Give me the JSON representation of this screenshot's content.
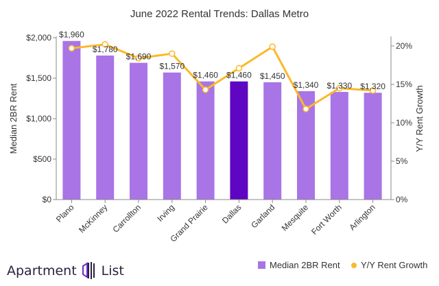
{
  "chart_data": {
    "type": "bar+line",
    "title": "June 2022 Rental Trends: Dallas Metro",
    "categories": [
      "Plano",
      "McKinney",
      "Carrollton",
      "Irving",
      "Grand Prairie",
      "Dallas",
      "Garland",
      "Mesquite",
      "Fort Worth",
      "Arlington"
    ],
    "series": [
      {
        "name": "Median 2BR Rent",
        "type": "bar",
        "axis": "left",
        "values": [
          1960,
          1780,
          1690,
          1570,
          1460,
          1460,
          1450,
          1340,
          1330,
          1320
        ],
        "labels": [
          "$1,960",
          "$1,780",
          "$1,690",
          "$1,570",
          "$1,460",
          "$1,460",
          "$1,450",
          "$1,340",
          "$1,330",
          "$1,320"
        ],
        "color": "#a974e6",
        "highlight_index": 5,
        "highlight_color": "#5e06c2"
      },
      {
        "name": "Y/Y Rent Growth",
        "type": "line",
        "axis": "right",
        "values": [
          19.7,
          20.2,
          18.4,
          19.0,
          14.3,
          17.1,
          19.9,
          11.8,
          14.5,
          14.2
        ],
        "color": "#fbb829"
      }
    ],
    "ylabel": "Median 2BR Rent",
    "y2label": "Y/Y Rent Growth",
    "ylim": [
      0,
      2000
    ],
    "y2lim": [
      0,
      20
    ],
    "yticks": [
      "$0",
      "$500",
      "$1,000",
      "$1,500",
      "$2,000"
    ],
    "y2ticks": [
      "0%",
      "5%",
      "10%",
      "15%",
      "20%"
    ],
    "grid": false,
    "legend": "bottom-right"
  },
  "branding": {
    "logo": "Apartment List"
  }
}
